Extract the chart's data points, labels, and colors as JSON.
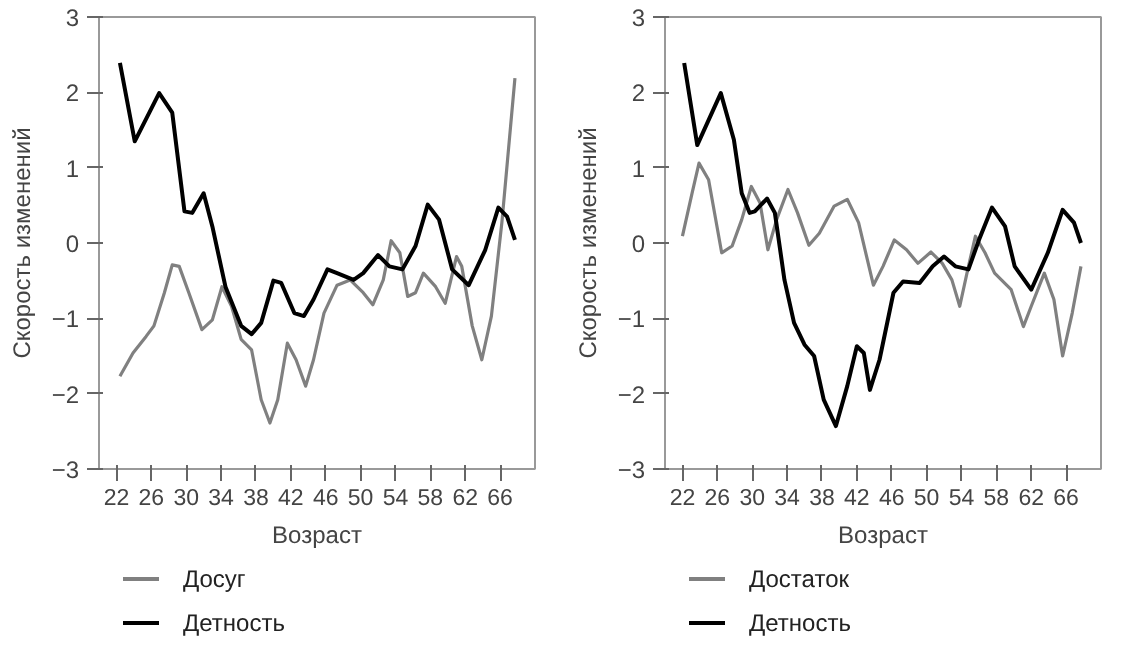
{
  "chart_data": [
    {
      "type": "line",
      "xlabel": "Возраст",
      "ylabel": "Скорость изменений",
      "xlim": [
        20,
        70
      ],
      "ylim": [
        -3,
        3
      ],
      "xticks": [
        22,
        26,
        30,
        34,
        38,
        42,
        46,
        50,
        54,
        58,
        62,
        66
      ],
      "yticks": [
        -3,
        -2,
        -1,
        0,
        1,
        2,
        3
      ],
      "grid": false,
      "legend": "bottom",
      "series": [
        {
          "name": "Досуг",
          "color": "#808080",
          "x": [
            22.4,
            23.9,
            25.4,
            26.3,
            27.5,
            28.4,
            29.2,
            30.3,
            31.8,
            33,
            34.1,
            35.2,
            36.3,
            37.5,
            38.6,
            39.6,
            40.5,
            41.6,
            42.6,
            43.7,
            44.6,
            45.8,
            47.3,
            48.8,
            50.3,
            51.4,
            52.6,
            53.5,
            54.5,
            55.4,
            56.3,
            57.2,
            58.6,
            59.7,
            61,
            61.6,
            62.8,
            63.9,
            65,
            66.2,
            67.7
          ],
          "values": [
            -1.77,
            -1.46,
            -1.24,
            -1.1,
            -0.66,
            -0.29,
            -0.31,
            -0.66,
            -1.15,
            -1.02,
            -0.58,
            -0.84,
            -1.28,
            -1.42,
            -2.08,
            -2.39,
            -2.08,
            -1.33,
            -1.55,
            -1.9,
            -1.55,
            -0.93,
            -0.56,
            -0.49,
            -0.66,
            -0.82,
            -0.49,
            0.03,
            -0.13,
            -0.71,
            -0.66,
            -0.4,
            -0.58,
            -0.8,
            -0.18,
            -0.31,
            -1.1,
            -1.55,
            -0.97,
            0.27,
            2.19
          ]
        },
        {
          "name": "Детность",
          "color": "#000000",
          "x": [
            22.4,
            24.1,
            26.9,
            28.4,
            29.8,
            30.7,
            32,
            33,
            34.5,
            36.3,
            37.5,
            38.6,
            40,
            40.9,
            42.4,
            43.5,
            44.6,
            46.2,
            47.3,
            49.2,
            50.3,
            52,
            53.3,
            54.8,
            56.3,
            57.7,
            59,
            60.5,
            62.4,
            64.3,
            65.8,
            66.8,
            67.7
          ],
          "values": [
            2.39,
            1.35,
            1.99,
            1.73,
            0.42,
            0.4,
            0.66,
            0.22,
            -0.58,
            -1.1,
            -1.21,
            -1.06,
            -0.5,
            -0.53,
            -0.93,
            -0.97,
            -0.75,
            -0.35,
            -0.4,
            -0.49,
            -0.4,
            -0.16,
            -0.31,
            -0.35,
            -0.04,
            0.51,
            0.31,
            -0.35,
            -0.56,
            -0.09,
            0.47,
            0.35,
            0.04
          ]
        }
      ]
    },
    {
      "type": "line",
      "xlabel": "Возраст",
      "ylabel": "Скорость изменений",
      "xlim": [
        20,
        70
      ],
      "ylim": [
        -3,
        3
      ],
      "xticks": [
        22,
        26,
        30,
        34,
        38,
        42,
        46,
        50,
        54,
        58,
        62,
        66
      ],
      "yticks": [
        -3,
        -2,
        -1,
        0,
        1,
        2,
        3
      ],
      "grid": false,
      "legend": "bottom",
      "series": [
        {
          "name": "Достаток",
          "color": "#808080",
          "x": [
            22,
            23.1,
            23.9,
            25,
            26.5,
            27.7,
            28.8,
            29.9,
            30.9,
            31.8,
            32.8,
            34.1,
            35.2,
            36.5,
            37.7,
            39.4,
            40.9,
            42.2,
            43.9,
            45,
            46.3,
            47.7,
            49,
            50.5,
            51.8,
            52.9,
            53.8,
            54.8,
            55.6,
            56.7,
            57.8,
            59.7,
            61.1,
            62,
            63.5,
            64.6,
            65.6,
            66.7,
            67.7
          ],
          "values": [
            0.09,
            0.66,
            1.06,
            0.84,
            -0.13,
            -0.04,
            0.31,
            0.75,
            0.53,
            -0.09,
            0.31,
            0.71,
            0.4,
            -0.03,
            0.13,
            0.49,
            0.58,
            0.27,
            -0.56,
            -0.31,
            0.04,
            -0.09,
            -0.27,
            -0.12,
            -0.27,
            -0.49,
            -0.84,
            -0.31,
            0.09,
            -0.13,
            -0.4,
            -0.62,
            -1.11,
            -0.84,
            -0.4,
            -0.75,
            -1.5,
            -0.93,
            -0.31
          ]
        },
        {
          "name": "Детность",
          "color": "#000000",
          "x": [
            22.2,
            23.7,
            26.4,
            27.9,
            28.8,
            29.7,
            30.3,
            31.7,
            32.6,
            33.7,
            34.8,
            36,
            37.1,
            38.2,
            39.6,
            40.9,
            42,
            42.8,
            43.5,
            44.6,
            46.2,
            47.3,
            49.2,
            50.7,
            52,
            53.3,
            54.8,
            56,
            57.5,
            59,
            60.1,
            62,
            63.9,
            65.6,
            66.9,
            67.7
          ],
          "values": [
            2.39,
            1.3,
            1.99,
            1.37,
            0.66,
            0.4,
            0.42,
            0.59,
            0.4,
            -0.49,
            -1.06,
            -1.35,
            -1.5,
            -2.08,
            -2.43,
            -1.9,
            -1.37,
            -1.46,
            -1.95,
            -1.55,
            -0.66,
            -0.51,
            -0.53,
            -0.31,
            -0.18,
            -0.31,
            -0.35,
            0.04,
            0.47,
            0.22,
            -0.31,
            -0.62,
            -0.13,
            0.44,
            0.27,
            0
          ]
        }
      ]
    }
  ]
}
